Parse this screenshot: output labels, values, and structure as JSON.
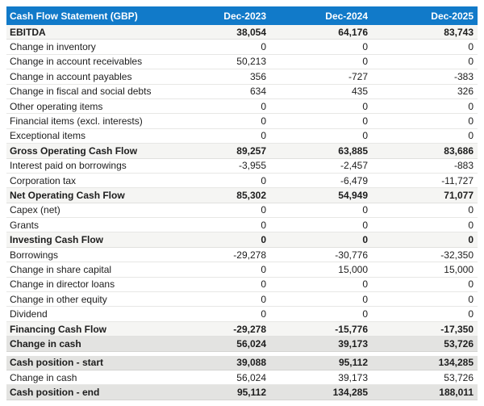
{
  "table": {
    "title": "Cash Flow Statement (GBP)",
    "columns": [
      "Dec-2023",
      "Dec-2024",
      "Dec-2025"
    ],
    "colors": {
      "header_bg": "#117ac9",
      "header_text": "#ffffff",
      "subtotal_row_bg": "#f5f5f3",
      "total_row_bg": "#e3e3e1",
      "row_border": "#e7e7e5",
      "text": "#1d1d1d"
    },
    "rows": [
      {
        "label": "EBITDA",
        "values": [
          "38,054",
          "64,176",
          "83,743"
        ],
        "style": "subtotal"
      },
      {
        "label": "Change in inventory",
        "values": [
          "0",
          "0",
          "0"
        ],
        "style": "normal"
      },
      {
        "label": "Change in account receivables",
        "values": [
          "50,213",
          "0",
          "0"
        ],
        "style": "normal"
      },
      {
        "label": "Change in account payables",
        "values": [
          "356",
          "-727",
          "-383"
        ],
        "style": "normal"
      },
      {
        "label": "Change in fiscal and social debts",
        "values": [
          "634",
          "435",
          "326"
        ],
        "style": "normal"
      },
      {
        "label": "Other operating items",
        "values": [
          "0",
          "0",
          "0"
        ],
        "style": "normal"
      },
      {
        "label": "Financial items (excl. interests)",
        "values": [
          "0",
          "0",
          "0"
        ],
        "style": "normal"
      },
      {
        "label": "Exceptional items",
        "values": [
          "0",
          "0",
          "0"
        ],
        "style": "normal"
      },
      {
        "label": "Gross Operating Cash Flow",
        "values": [
          "89,257",
          "63,885",
          "83,686"
        ],
        "style": "subtotal"
      },
      {
        "label": "Interest paid on borrowings",
        "values": [
          "-3,955",
          "-2,457",
          "-883"
        ],
        "style": "normal"
      },
      {
        "label": "Corporation tax",
        "values": [
          "0",
          "-6,479",
          "-11,727"
        ],
        "style": "normal"
      },
      {
        "label": "Net Operating Cash Flow",
        "values": [
          "85,302",
          "54,949",
          "71,077"
        ],
        "style": "subtotal"
      },
      {
        "label": "Capex (net)",
        "values": [
          "0",
          "0",
          "0"
        ],
        "style": "normal"
      },
      {
        "label": "Grants",
        "values": [
          "0",
          "0",
          "0"
        ],
        "style": "normal"
      },
      {
        "label": "Investing Cash Flow",
        "values": [
          "0",
          "0",
          "0"
        ],
        "style": "subtotal"
      },
      {
        "label": "Borrowings",
        "values": [
          "-29,278",
          "-30,776",
          "-32,350"
        ],
        "style": "normal"
      },
      {
        "label": "Change in share capital",
        "values": [
          "0",
          "15,000",
          "15,000"
        ],
        "style": "normal"
      },
      {
        "label": "Change in director loans",
        "values": [
          "0",
          "0",
          "0"
        ],
        "style": "normal"
      },
      {
        "label": "Change in other equity",
        "values": [
          "0",
          "0",
          "0"
        ],
        "style": "normal"
      },
      {
        "label": "Dividend",
        "values": [
          "0",
          "0",
          "0"
        ],
        "style": "normal"
      },
      {
        "label": "Financing Cash Flow",
        "values": [
          "-29,278",
          "-15,776",
          "-17,350"
        ],
        "style": "subtotal"
      },
      {
        "label": "Change in cash",
        "values": [
          "56,024",
          "39,173",
          "53,726"
        ],
        "style": "total"
      },
      {
        "label": "Cash position - start",
        "values": [
          "39,088",
          "95,112",
          "134,285"
        ],
        "style": "total",
        "gap_before": true
      },
      {
        "label": "Change in cash",
        "values": [
          "56,024",
          "39,173",
          "53,726"
        ],
        "style": "normal"
      },
      {
        "label": "Cash position - end",
        "values": [
          "95,112",
          "134,285",
          "188,011"
        ],
        "style": "total"
      }
    ]
  }
}
